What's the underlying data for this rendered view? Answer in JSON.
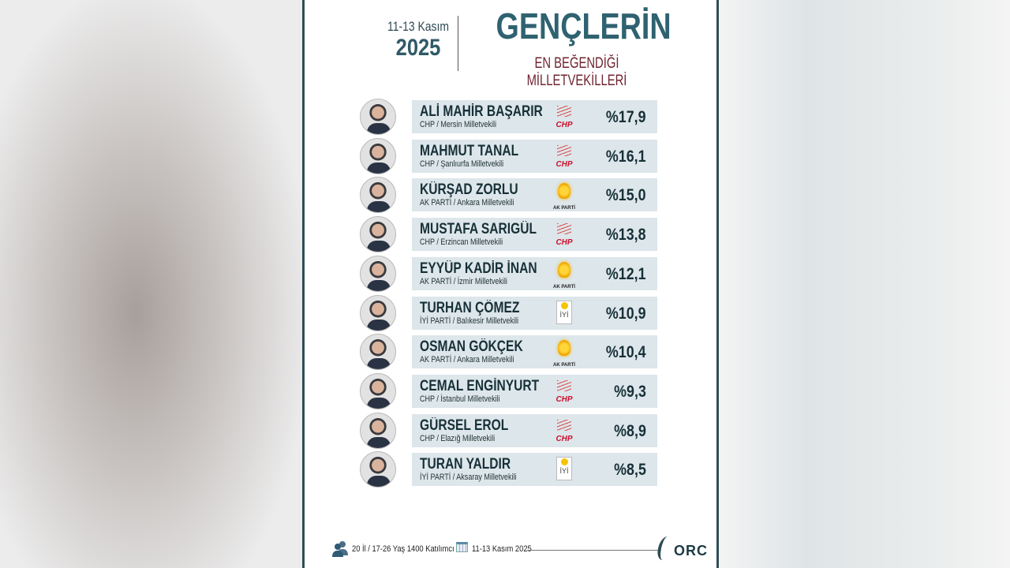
{
  "header": {
    "date_range": "11-13 Kasım",
    "year": "2025",
    "title": "GENÇLERİN",
    "subtitle": "EN BEĞENDİĞİ MİLLETVEKİLLERİ"
  },
  "rows": [
    {
      "name": "ALİ MAHİR BAŞARIR",
      "detail": "CHP / Mersin Milletvekili",
      "party": "CHP",
      "percent": "%17,9"
    },
    {
      "name": "MAHMUT TANAL",
      "detail": "CHP / Şanlıurfa Milletvekili",
      "party": "CHP",
      "percent": "%16,1"
    },
    {
      "name": "KÜRŞAD ZORLU",
      "detail": "AK PARTİ / Ankara Milletvekili",
      "party": "AK PARTİ",
      "percent": "%15,0"
    },
    {
      "name": "MUSTAFA SARIGÜL",
      "detail": "CHP / Erzincan Milletvekili",
      "party": "CHP",
      "percent": "%13,8"
    },
    {
      "name": "EYYÜP KADİR İNAN",
      "detail": "AK PARTİ / İzmir Milletvekili",
      "party": "AK PARTİ",
      "percent": "%12,1"
    },
    {
      "name": "TURHAN ÇÖMEZ",
      "detail": "İYİ PARTİ / Balıkesir Milletvekili",
      "party": "İYİ",
      "percent": "%10,9"
    },
    {
      "name": "OSMAN GÖKÇEK",
      "detail": "AK PARTİ / Ankara Milletvekili",
      "party": "AK PARTİ",
      "percent": "%10,4"
    },
    {
      "name": "CEMAL ENGİNYURT",
      "detail": "CHP / İstanbul Milletvekili",
      "party": "CHP",
      "percent": "%9,3"
    },
    {
      "name": "GÜRSEL EROL",
      "detail": "CHP / Elazığ Milletvekili",
      "party": "CHP",
      "percent": "%8,9"
    },
    {
      "name": "TURAN YALDIR",
      "detail": "İYİ PARTİ / Aksaray Milletvekili",
      "party": "İYİ",
      "percent": "%8,5"
    }
  ],
  "footer": {
    "sample": "20 İl / 17-26 Yaş 1400 Katılımcı",
    "date": "11-13 Kasım 2025",
    "brand": "ORC"
  },
  "colors": {
    "title": "#2f6270",
    "subtitle": "#6f2430",
    "bar": "#dde6ea",
    "border": "#2f4d55"
  }
}
